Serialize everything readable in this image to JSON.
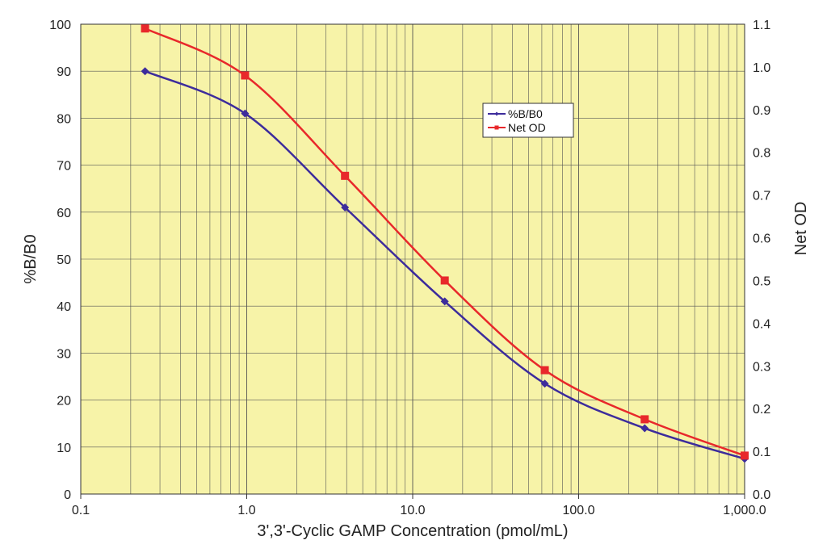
{
  "chart_data": {
    "type": "line",
    "xlabel": "3',3'-Cyclic GAMP Concentration (pmol/mL)",
    "ylabel": "%B/B0",
    "y2label": "Net OD",
    "x_scale": "log",
    "xlim": [
      0.1,
      1000
    ],
    "ylim": [
      0,
      100
    ],
    "y2lim": [
      0,
      1.1
    ],
    "grid": true,
    "legend_position": "upper-middle-right",
    "plot_background": "#f7f3a8",
    "x_ticks": [
      {
        "value": 0.1,
        "label": "0.1"
      },
      {
        "value": 1,
        "label": "1.0"
      },
      {
        "value": 10,
        "label": "10.0"
      },
      {
        "value": 100,
        "label": "100.0"
      },
      {
        "value": 1000,
        "label": "1,000.0"
      }
    ],
    "y_ticks": [
      {
        "value": 0,
        "label": "0"
      },
      {
        "value": 10,
        "label": "10"
      },
      {
        "value": 20,
        "label": "20"
      },
      {
        "value": 30,
        "label": "30"
      },
      {
        "value": 40,
        "label": "40"
      },
      {
        "value": 50,
        "label": "50"
      },
      {
        "value": 60,
        "label": "60"
      },
      {
        "value": 70,
        "label": "70"
      },
      {
        "value": 80,
        "label": "80"
      },
      {
        "value": 90,
        "label": "90"
      },
      {
        "value": 100,
        "label": "100"
      }
    ],
    "y2_ticks": [
      {
        "value": 0,
        "label": "0.0"
      },
      {
        "value": 0.1,
        "label": "0.1"
      },
      {
        "value": 0.2,
        "label": "0.2"
      },
      {
        "value": 0.3,
        "label": "0.3"
      },
      {
        "value": 0.4,
        "label": "0.4"
      },
      {
        "value": 0.5,
        "label": "0.5"
      },
      {
        "value": 0.6,
        "label": "0.6"
      },
      {
        "value": 0.7,
        "label": "0.7"
      },
      {
        "value": 0.8,
        "label": "0.8"
      },
      {
        "value": 0.9,
        "label": "0.9"
      },
      {
        "value": 1.0,
        "label": "1.0"
      },
      {
        "value": 1.1,
        "label": "1.1"
      }
    ],
    "series": [
      {
        "name": "%B/B0",
        "axis": "left",
        "color": "#3d2c9c",
        "marker": "diamond",
        "x": [
          0.244,
          0.977,
          3.91,
          15.6,
          62.5,
          250,
          1000
        ],
        "y": [
          90.0,
          81.0,
          61.0,
          41.0,
          23.5,
          14.0,
          7.5
        ]
      },
      {
        "name": "Net OD",
        "axis": "right",
        "color": "#e8282b",
        "marker": "square",
        "x": [
          0.244,
          0.977,
          3.91,
          15.6,
          62.5,
          250,
          1000
        ],
        "y": [
          1.09,
          0.98,
          0.745,
          0.5,
          0.29,
          0.175,
          0.09
        ]
      }
    ]
  }
}
